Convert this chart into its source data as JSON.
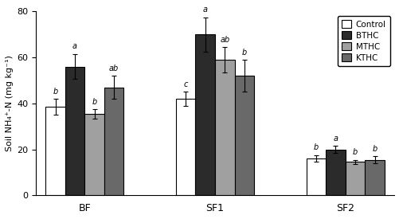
{
  "groups": [
    "BF",
    "SF1",
    "SF2"
  ],
  "series": [
    "Control",
    "BTHC",
    "MTHC",
    "KTHC"
  ],
  "bar_colors": [
    "#ffffff",
    "#2b2b2b",
    "#a0a0a0",
    "#696969"
  ],
  "bar_edgecolors": [
    "#000000",
    "#000000",
    "#000000",
    "#000000"
  ],
  "values": [
    [
      38.5,
      56.0,
      35.5,
      47.0
    ],
    [
      42.0,
      70.0,
      59.0,
      52.0
    ],
    [
      16.0,
      20.0,
      14.5,
      15.5
    ]
  ],
  "errors": [
    [
      3.5,
      5.5,
      2.0,
      5.0
    ],
    [
      3.0,
      7.5,
      5.5,
      7.0
    ],
    [
      1.5,
      1.5,
      1.0,
      1.5
    ]
  ],
  "sig_labels": [
    [
      "b",
      "a",
      "b",
      "ab"
    ],
    [
      "c",
      "a",
      "ab",
      "b"
    ],
    [
      "b",
      "a",
      "b",
      "b"
    ]
  ],
  "ylabel": "Soil NH₄⁺-N (mg kg⁻¹)",
  "ylim": [
    0,
    80
  ],
  "yticks": [
    0,
    20,
    40,
    60,
    80
  ],
  "legend_labels": [
    "Control",
    "BTHC",
    "MTHC",
    "KTHC"
  ],
  "bar_width": 0.18,
  "group_positions": [
    1.0,
    2.2,
    3.4
  ]
}
